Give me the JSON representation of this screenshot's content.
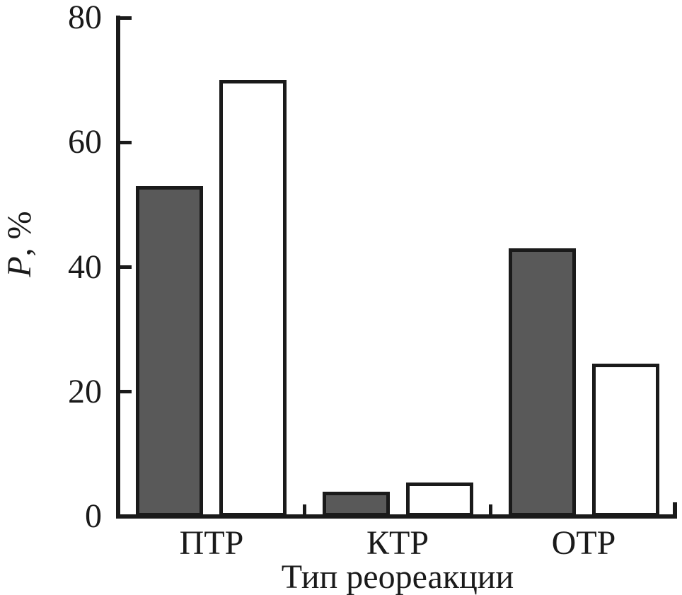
{
  "chart_data": {
    "type": "bar",
    "title": "",
    "categories": [
      "ПТР",
      "КТР",
      "ОТР"
    ],
    "series": [
      {
        "name": "dark-gray-bars",
        "fill": "#595959",
        "values": [
          53,
          4,
          43
        ]
      },
      {
        "name": "white-bars",
        "fill": "#ffffff",
        "values": [
          70,
          5.5,
          24.5
        ]
      }
    ],
    "xlabel": "Тип реореакции",
    "ylabel": "P, %",
    "ylabel_italic": "P",
    "ylabel_rest": ", %",
    "ylim": [
      0,
      80
    ],
    "yticks": [
      0,
      20,
      40,
      60,
      80
    ],
    "ytick_labels": [
      "0",
      "20",
      "40",
      "60",
      "80"
    ],
    "grid": false,
    "legend": "none",
    "colors": {
      "axis": "#1a1a1a",
      "bar_border": "#1a1a1a",
      "dark_fill": "#595959",
      "white_fill": "#ffffff",
      "background": "#ffffff"
    }
  }
}
